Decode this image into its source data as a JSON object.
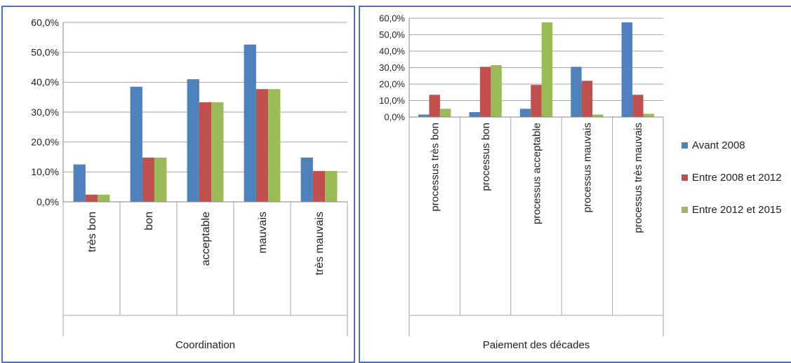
{
  "colors": {
    "avant_2008": "#4f81bd",
    "entre_2008_2012": "#c0504d",
    "entre_2012_2015": "#9bbb59",
    "panel_border": "#4a72b8",
    "gridline": "#a6a6a6"
  },
  "chart_data": [
    {
      "type": "bar",
      "title": "",
      "xlabel": "Coordination",
      "ylabel": "",
      "ylim": [
        0,
        60
      ],
      "yticks": [
        "0,0%",
        "10,0%",
        "20,0%",
        "30,0%",
        "40,0%",
        "50,0%",
        "60,0%"
      ],
      "categories": [
        "très bon",
        "bon",
        "acceptable",
        "mauvais",
        "très mauvais"
      ],
      "grid": true,
      "legend": "none",
      "series": [
        {
          "name": "Avant 2008",
          "values": [
            12.5,
            38.5,
            41.0,
            52.6,
            14.8
          ]
        },
        {
          "name": "Entre 2008 et 2012",
          "values": [
            2.4,
            14.8,
            33.3,
            37.7,
            10.3
          ]
        },
        {
          "name": "Entre 2012 et 2015",
          "values": [
            2.4,
            14.8,
            33.3,
            37.7,
            10.3
          ]
        }
      ]
    },
    {
      "type": "bar",
      "title": "",
      "xlabel": "Paiement des décades",
      "ylabel": "",
      "ylim": [
        0,
        60
      ],
      "yticks": [
        "0,0%",
        "10,0%",
        "20,0%",
        "30,0%",
        "40,0%",
        "50,0%",
        "60,0%"
      ],
      "categories": [
        "processus très bon",
        "processus bon",
        "processus acceptable",
        "processus mauvais",
        "processus très mauvais"
      ],
      "grid": true,
      "legend": "right",
      "series": [
        {
          "name": "Avant 2008",
          "values": [
            1.5,
            3.0,
            5.0,
            30.5,
            57.5
          ]
        },
        {
          "name": "Entre 2008 et 2012",
          "values": [
            13.5,
            30.5,
            19.5,
            22.0,
            13.5
          ]
        },
        {
          "name": "Entre 2012 et 2015",
          "values": [
            5.0,
            31.5,
            57.5,
            1.5,
            2.0
          ]
        }
      ]
    }
  ]
}
